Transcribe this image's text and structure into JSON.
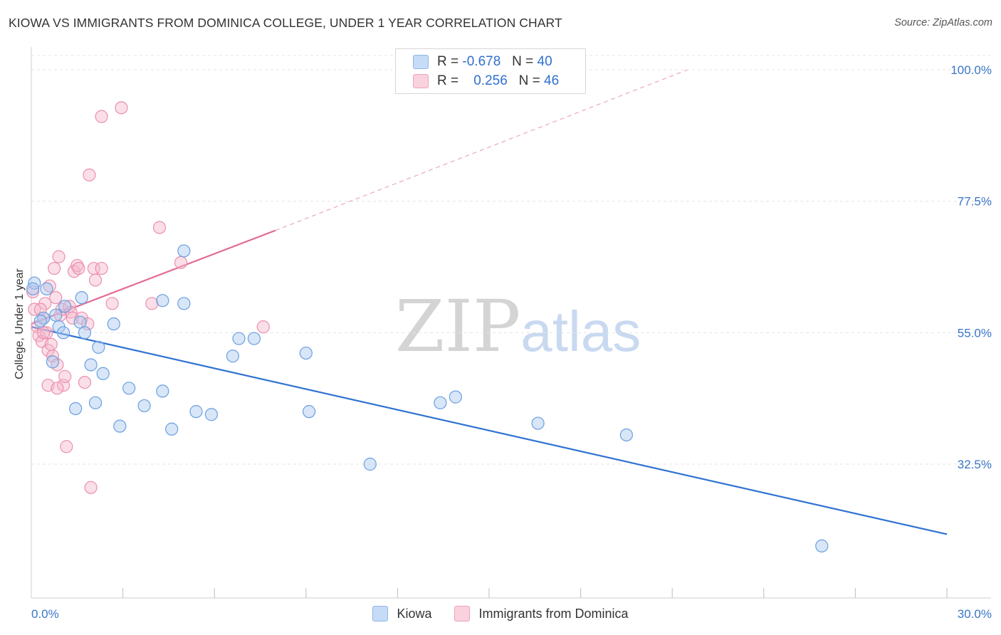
{
  "title": "KIOWA VS IMMIGRANTS FROM DOMINICA COLLEGE, UNDER 1 YEAR CORRELATION CHART",
  "source": "Source: ZipAtlas.com",
  "watermark": {
    "zip": "ZIP",
    "atlas": "atlas"
  },
  "legend": {
    "rows": [
      {
        "r_label": "R =",
        "r_value": "-0.678",
        "n_label": "N =",
        "n_value": "40",
        "color": "#a9c8f0"
      },
      {
        "r_label": "R =",
        "r_value": "0.256",
        "n_label": "N =",
        "n_value": "46",
        "color": "#f5b8cc"
      }
    ]
  },
  "chart_data": {
    "type": "scatter",
    "title": "KIOWA VS IMMIGRANTS FROM DOMINICA COLLEGE, UNDER 1 YEAR CORRELATION CHART",
    "xlabel": "",
    "ylabel": "College, Under 1 year",
    "xlim": [
      0,
      30
    ],
    "ylim": [
      10,
      102
    ],
    "x_tick_labels": [
      "0.0%",
      "30.0%"
    ],
    "y_ticks": [
      32.5,
      55.0,
      77.5,
      100.0
    ],
    "y_tick_labels": [
      "32.5%",
      "55.0%",
      "77.5%",
      "100.0%"
    ],
    "grid": true,
    "series": [
      {
        "name": "Kiowa",
        "color": "#a9c8f0",
        "stroke": "#6a9fe0",
        "trend": {
          "x": [
            0,
            30
          ],
          "y": [
            56.0,
            20.5
          ],
          "color": "#2f72d2"
        },
        "points": [
          [
            0.1,
            63.5
          ],
          [
            0.5,
            62.5
          ],
          [
            0.4,
            57.5
          ],
          [
            0.8,
            58.0
          ],
          [
            0.9,
            56.0
          ],
          [
            1.05,
            55.0
          ],
          [
            1.1,
            59.5
          ],
          [
            1.6,
            56.8
          ],
          [
            1.65,
            61.0
          ],
          [
            1.75,
            55.0
          ],
          [
            2.7,
            56.5
          ],
          [
            0.7,
            50.0
          ],
          [
            2.2,
            52.5
          ],
          [
            1.95,
            49.5
          ],
          [
            2.35,
            48.0
          ],
          [
            4.3,
            60.5
          ],
          [
            5.0,
            69.0
          ],
          [
            5.0,
            60.0
          ],
          [
            3.2,
            45.5
          ],
          [
            4.3,
            45.0
          ],
          [
            1.45,
            42.0
          ],
          [
            2.1,
            43.0
          ],
          [
            3.7,
            42.5
          ],
          [
            2.9,
            39.0
          ],
          [
            4.6,
            38.5
          ],
          [
            5.4,
            41.5
          ],
          [
            5.9,
            41.0
          ],
          [
            6.6,
            51.0
          ],
          [
            6.8,
            54.0
          ],
          [
            7.3,
            54.0
          ],
          [
            9.0,
            51.5
          ],
          [
            9.1,
            41.5
          ],
          [
            11.1,
            32.5
          ],
          [
            13.4,
            43.0
          ],
          [
            13.9,
            44.0
          ],
          [
            16.6,
            39.5
          ],
          [
            19.5,
            37.5
          ],
          [
            25.9,
            18.5
          ],
          [
            0.05,
            62.5
          ],
          [
            0.3,
            57.0
          ]
        ]
      },
      {
        "name": "Immigrants from Dominica",
        "color": "#f5b8cc",
        "stroke": "#ec8fae",
        "trend": {
          "x": [
            0,
            8.0
          ],
          "y": [
            56.5,
            72.5
          ],
          "dashed_to": [
            21.5,
            100.0
          ],
          "color": "#e36b95"
        },
        "points": [
          [
            0.05,
            62.0
          ],
          [
            0.1,
            59.0
          ],
          [
            0.2,
            56.0
          ],
          [
            0.25,
            54.5
          ],
          [
            0.35,
            53.5
          ],
          [
            0.4,
            57.5
          ],
          [
            0.45,
            60.0
          ],
          [
            0.5,
            55.0
          ],
          [
            0.55,
            52.0
          ],
          [
            0.6,
            63.0
          ],
          [
            0.65,
            53.0
          ],
          [
            0.7,
            51.0
          ],
          [
            0.75,
            66.0
          ],
          [
            0.8,
            61.0
          ],
          [
            0.85,
            49.5
          ],
          [
            0.9,
            68.0
          ],
          [
            0.95,
            58.0
          ],
          [
            1.0,
            59.0
          ],
          [
            1.05,
            46.0
          ],
          [
            1.1,
            47.5
          ],
          [
            1.15,
            35.5
          ],
          [
            1.25,
            59.5
          ],
          [
            1.3,
            58.5
          ],
          [
            1.35,
            57.5
          ],
          [
            1.4,
            65.5
          ],
          [
            1.5,
            66.5
          ],
          [
            1.55,
            66.0
          ],
          [
            1.65,
            57.5
          ],
          [
            1.75,
            46.5
          ],
          [
            1.85,
            56.5
          ],
          [
            1.9,
            82.0
          ],
          [
            1.95,
            28.5
          ],
          [
            2.05,
            66.0
          ],
          [
            2.1,
            64.0
          ],
          [
            2.3,
            92.0
          ],
          [
            2.3,
            66.0
          ],
          [
            2.65,
            60.0
          ],
          [
            2.95,
            93.5
          ],
          [
            4.2,
            73.0
          ],
          [
            3.95,
            60.0
          ],
          [
            4.9,
            67.0
          ],
          [
            7.6,
            56.0
          ],
          [
            0.55,
            46.0
          ],
          [
            0.85,
            45.5
          ],
          [
            0.3,
            59.0
          ],
          [
            0.4,
            55.0
          ]
        ]
      }
    ]
  },
  "bottom_legend": [
    {
      "label": "Kiowa",
      "color": "#a9c8f0"
    },
    {
      "label": "Immigrants from Dominica",
      "color": "#f5b8cc"
    }
  ]
}
